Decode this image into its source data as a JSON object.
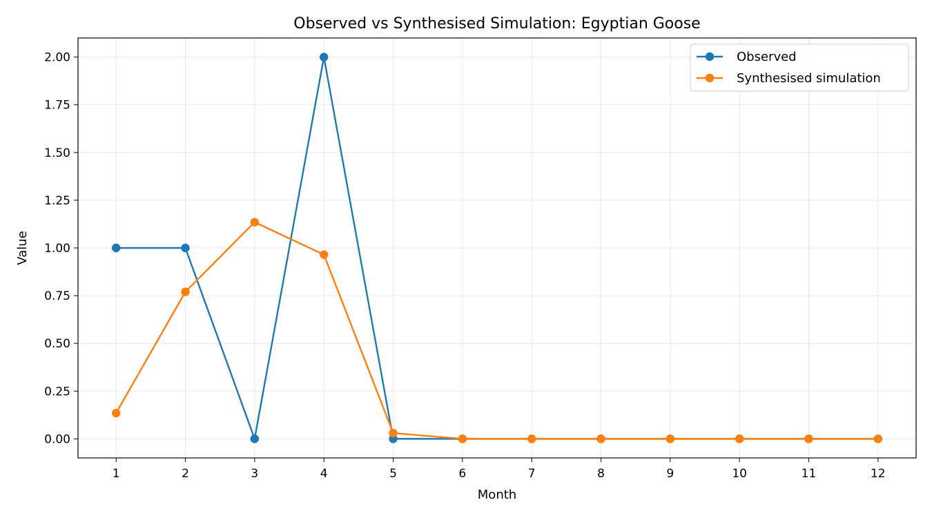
{
  "chart_data": {
    "type": "line",
    "title": "Observed vs Synthesised Simulation: Egyptian Goose",
    "xlabel": "Month",
    "ylabel": "Value",
    "x": [
      1,
      2,
      3,
      4,
      5,
      6,
      7,
      8,
      9,
      10,
      11,
      12
    ],
    "xticks": [
      "1",
      "2",
      "3",
      "4",
      "5",
      "6",
      "7",
      "8",
      "9",
      "10",
      "11",
      "12"
    ],
    "yticks": [
      "0.00",
      "0.25",
      "0.50",
      "0.75",
      "1.00",
      "1.25",
      "1.50",
      "1.75",
      "2.00"
    ],
    "ylim": [
      -0.1,
      2.1
    ],
    "xlim": [
      0.45,
      12.55
    ],
    "grid": true,
    "legend_position": "top-right",
    "series": [
      {
        "name": "Observed",
        "color": "#1f77b4",
        "marker": "circle",
        "values": [
          1.0,
          1.0,
          0.0,
          2.0,
          0.0,
          0.0,
          0.0,
          0.0,
          0.0,
          0.0,
          0.0,
          0.0
        ]
      },
      {
        "name": "Synthesised simulation",
        "color": "#ff7f0e",
        "marker": "circle",
        "values": [
          0.135,
          0.77,
          1.135,
          0.965,
          0.03,
          0.0,
          0.0,
          0.0,
          0.0,
          0.0,
          0.0,
          0.0
        ]
      }
    ]
  }
}
